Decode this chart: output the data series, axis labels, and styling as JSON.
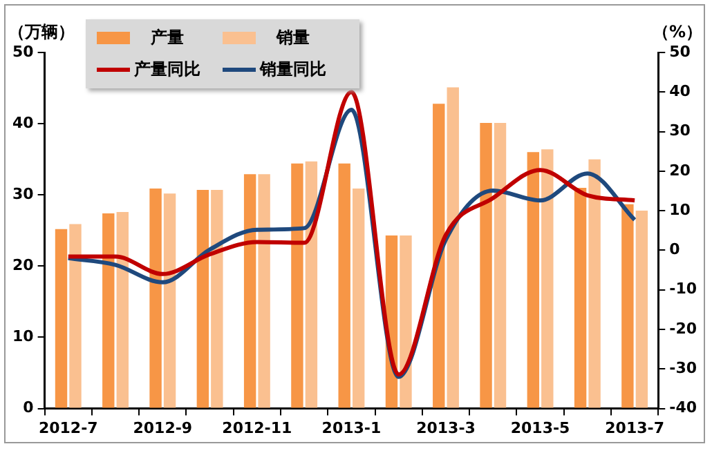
{
  "chart_data": {
    "type": "bar",
    "ylabel": "（万辆）",
    "y2label": "（%）",
    "categories": [
      "2012-7",
      null,
      "2012-9",
      null,
      "2012-11",
      null,
      "2013-1",
      null,
      "2013-3",
      null,
      "2013-5",
      null,
      "2013-7"
    ],
    "series": [
      {
        "name": "产量",
        "color": "#f79646",
        "values": [
          25.2,
          27.4,
          30.9,
          30.7,
          32.9,
          34.4,
          34.4,
          24.3,
          42.8,
          40.1,
          36.0,
          31.0,
          28.7
        ]
      },
      {
        "name": "销量",
        "color": "#fac090",
        "values": [
          25.9,
          27.6,
          30.2,
          30.7,
          32.9,
          34.7,
          30.9,
          24.3,
          45.1,
          40.1,
          36.4,
          35.0,
          27.8
        ]
      },
      {
        "name": "产量同比",
        "type": "line",
        "axis": "y2",
        "color": "#c00000",
        "values": [
          -1.6,
          -1.6,
          -6.0,
          -1.0,
          2.1,
          1.9,
          40.0,
          -31.4,
          3.9,
          13.2,
          20.3,
          13.9,
          12.6
        ]
      },
      {
        "name": "销量同比",
        "type": "line",
        "axis": "y2",
        "color": "#1f497d",
        "values": [
          -2.0,
          -3.7,
          -8.1,
          0.2,
          5.2,
          5.6,
          35.5,
          -32.0,
          2.7,
          15.1,
          12.6,
          19.4,
          7.7
        ]
      }
    ],
    "ylim": [
      0,
      50
    ],
    "yticks": [
      0,
      10,
      20,
      30,
      40,
      50
    ],
    "y2lim": [
      -40,
      50
    ],
    "y2ticks": [
      -40,
      -30,
      -20,
      -10,
      0,
      10,
      20,
      30,
      40,
      50
    ],
    "grid": false,
    "legend": "top left",
    "marker": "none",
    "line_style": "solid"
  }
}
